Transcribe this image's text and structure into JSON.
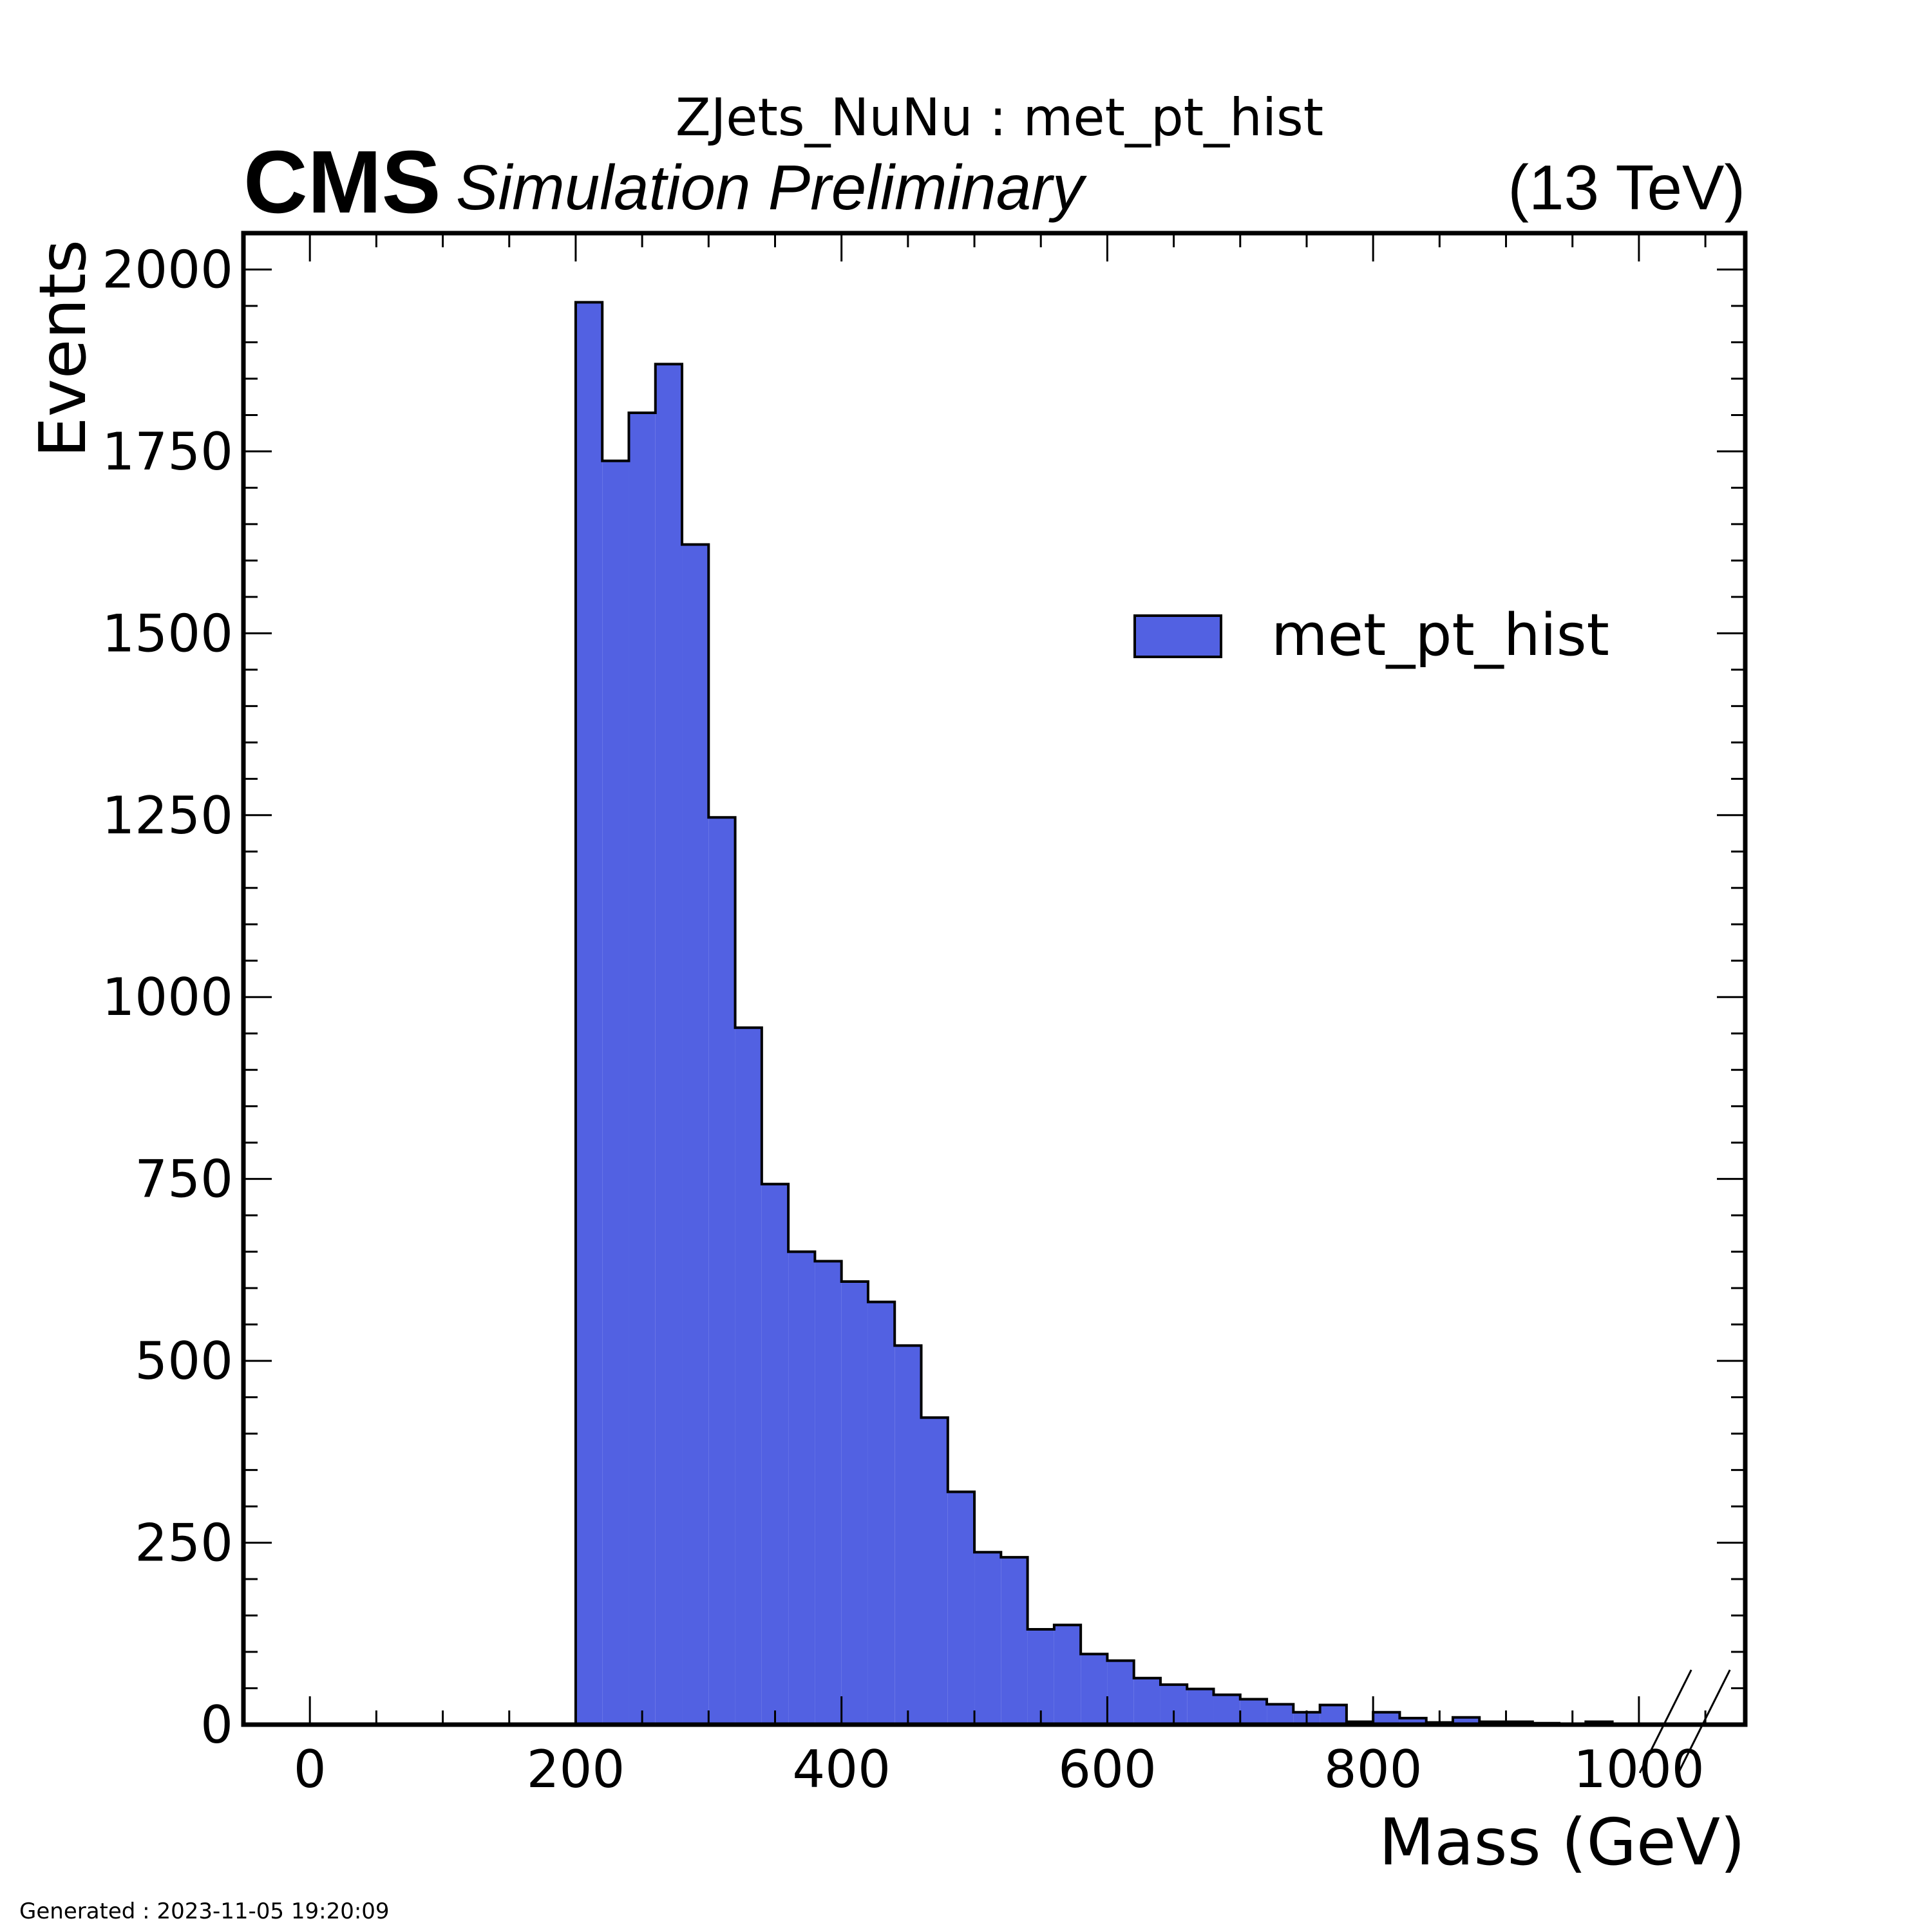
{
  "chart_data": {
    "type": "bar",
    "histtype": "step-filled",
    "title": "ZJets_NuNu : met_pt_hist",
    "experiment_label": "CMS",
    "experiment_sublabel": "Simulation Preliminary",
    "energy_label": "(13 TeV)",
    "xlabel": "Mass (GeV)",
    "ylabel": "Events",
    "xlim": [
      -50,
      1080
    ],
    "ylim": [
      0,
      2050
    ],
    "x_ticks": [
      0,
      200,
      400,
      600,
      800,
      1000
    ],
    "x_tick_labels": [
      "0",
      "200",
      "400",
      "600",
      "800",
      "1000"
    ],
    "y_ticks": [
      0,
      250,
      500,
      750,
      1000,
      1250,
      1500,
      1750,
      2000
    ],
    "y_tick_labels": [
      "0",
      "250",
      "500",
      "750",
      "1000",
      "1250",
      "1500",
      "1750",
      "2000"
    ],
    "axis_break": {
      "x": 1020,
      "label": "axis break after 1000"
    },
    "legend": {
      "placement": "upper-right",
      "entries": [
        "met_pt_hist"
      ]
    },
    "grid": false,
    "series": [
      {
        "name": "met_pt_hist",
        "color": "#5261e2",
        "edge_color": "#000000",
        "bin_edges": [
          -50,
          200,
          220,
          240,
          260,
          280,
          300,
          320,
          340,
          360,
          380,
          400,
          420,
          440,
          460,
          480,
          500,
          520,
          540,
          560,
          580,
          600,
          620,
          640,
          660,
          680,
          700,
          720,
          740,
          760,
          780,
          800,
          820,
          840,
          860,
          880,
          900,
          920,
          940,
          960,
          980,
          1000
        ],
        "values": [
          0,
          1955,
          1737,
          1803,
          1870,
          1622,
          1247,
          958,
          743,
          650,
          637,
          609,
          581,
          521,
          422,
          320,
          237,
          230,
          131,
          137,
          97,
          88,
          64,
          55,
          49,
          41,
          35,
          28,
          17,
          27,
          4,
          17,
          9,
          3,
          10,
          4,
          4,
          2,
          0,
          4,
          0
        ]
      }
    ]
  },
  "footer": {
    "generated_text": "Generated : 2023-11-05 19:20:09"
  }
}
